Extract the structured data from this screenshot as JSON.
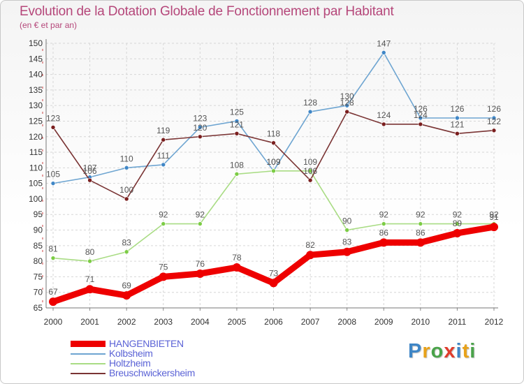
{
  "title": "Evolution de la Dotation Globale de Fonctionnement par Habitant",
  "subtitle": "(en € et par an)",
  "logo": "Proxiti",
  "colors": {
    "title": "#b5477a",
    "legend_text": "#5b63d6"
  },
  "chart_data": {
    "type": "line",
    "x": [
      2000,
      2001,
      2002,
      2003,
      2004,
      2005,
      2006,
      2007,
      2008,
      2009,
      2010,
      2011,
      2012
    ],
    "ylim": [
      65,
      150
    ],
    "yticks": [
      65,
      70,
      75,
      80,
      85,
      90,
      95,
      100,
      105,
      110,
      115,
      120,
      125,
      130,
      135,
      140,
      145,
      150
    ],
    "grid": true,
    "legend_position": "bottom-left",
    "series": [
      {
        "name": "Kolbsheim",
        "color": "#6ea5d1",
        "marker": "#3f86c6",
        "values": [
          105,
          107,
          110,
          111,
          123,
          125,
          109,
          128,
          130,
          147,
          126,
          126,
          126
        ]
      },
      {
        "name": "Holtzheim",
        "color": "#a9dc84",
        "marker": "#7ccc45",
        "values": [
          81,
          80,
          83,
          92,
          92,
          108,
          109,
          109,
          90,
          92,
          92,
          92,
          92
        ]
      },
      {
        "name": "Breuschwickersheim",
        "color": "#7a3434",
        "marker": "#7a1e1e",
        "values": [
          123,
          106,
          100,
          119,
          120,
          121,
          118,
          106,
          128,
          124,
          124,
          121,
          122
        ]
      },
      {
        "name": "HANGENBIETEN",
        "color": "#ee0000",
        "marker": "#ee0000",
        "values": [
          67,
          71,
          69,
          75,
          76,
          78,
          73,
          82,
          83,
          86,
          86,
          89,
          91
        ]
      }
    ]
  }
}
